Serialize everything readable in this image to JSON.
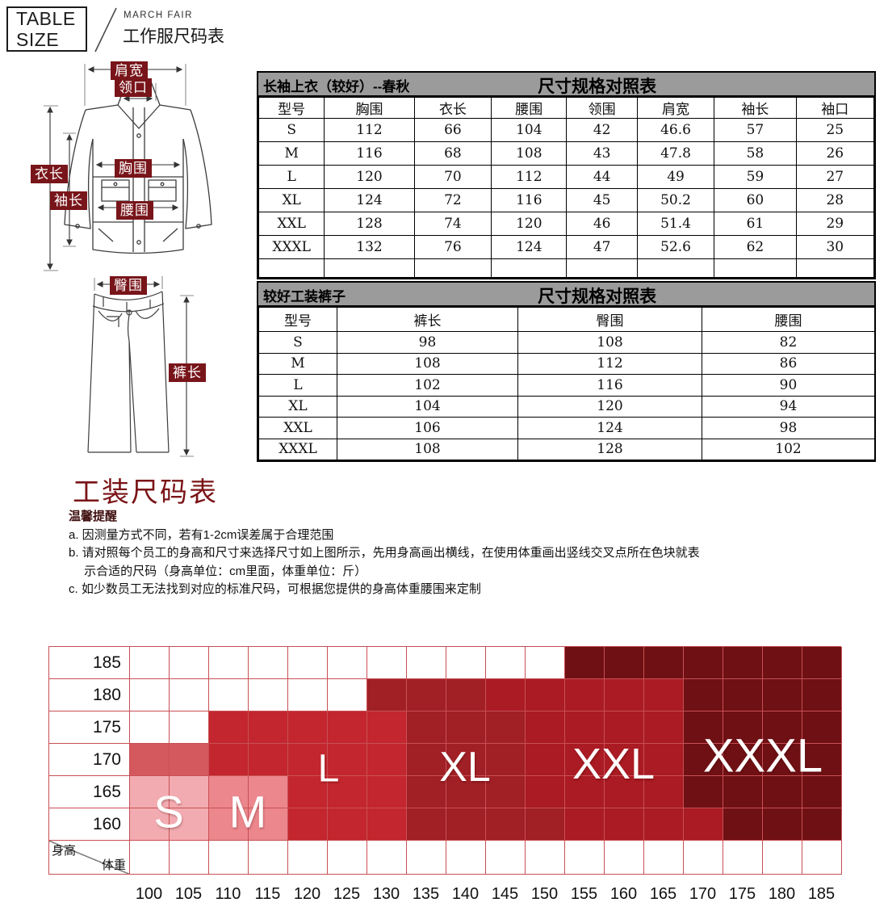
{
  "header": {
    "logo_line1": "TABLE",
    "logo_line2": "SIZE",
    "brand": "MARCH FAIR",
    "subtitle": "工作服尺码表"
  },
  "diagram": {
    "jacket": {
      "shoulder": "肩宽",
      "collar": "领口",
      "length": "衣长",
      "sleeve": "袖长",
      "chest": "胸围",
      "waist": "腰围"
    },
    "pants": {
      "hip": "臀围",
      "pant_length": "裤长"
    },
    "chip_color": "#78151A"
  },
  "tables": [
    {
      "title": "长袖上衣（较好）--春秋",
      "header_title": "尺寸规格对照表",
      "columns": [
        "型号",
        "胸围",
        "衣长",
        "腰围",
        "领围",
        "肩宽",
        "袖长",
        "袖口"
      ],
      "rows": [
        [
          "S",
          "112",
          "66",
          "104",
          "42",
          "46.6",
          "57",
          "25"
        ],
        [
          "M",
          "116",
          "68",
          "108",
          "43",
          "47.8",
          "58",
          "26"
        ],
        [
          "L",
          "120",
          "70",
          "112",
          "44",
          "49",
          "59",
          "27"
        ],
        [
          "XL",
          "124",
          "72",
          "116",
          "45",
          "50.2",
          "60",
          "28"
        ],
        [
          "XXL",
          "128",
          "74",
          "120",
          "46",
          "51.4",
          "61",
          "29"
        ],
        [
          "XXXL",
          "132",
          "76",
          "124",
          "47",
          "52.6",
          "62",
          "30"
        ],
        [
          "",
          "",
          "",
          "",
          "",
          "",
          "",
          ""
        ]
      ]
    },
    {
      "title": "较好工装裤子",
      "header_title": "尺寸规格对照表",
      "columns": [
        "型号",
        "裤长",
        "臀围",
        "腰围"
      ],
      "rows": [
        [
          "S",
          "98",
          "108",
          "82"
        ],
        [
          "M",
          "108",
          "112",
          "86"
        ],
        [
          "L",
          "102",
          "116",
          "90"
        ],
        [
          "XL",
          "104",
          "120",
          "94"
        ],
        [
          "XXL",
          "106",
          "124",
          "98"
        ],
        [
          "XXXL",
          "108",
          "128",
          "102"
        ]
      ]
    }
  ],
  "section_title": "工装尺码表",
  "notes": {
    "heading": "温馨提醒",
    "lines": [
      "a. 因测量方式不同，若有1-2cm误差属于合理范围",
      "b. 请对照每个员工的身高和尺寸来选择尺寸如上图所示，先用身高画出横线，在使用体重画出竖线交叉点所在色块就表",
      "　 示合适的尺码（身高单位：cm里面，体重单位：斤）",
      "c. 如少数员工无法找到对应的标准尺码，可根据您提供的身高体重腰围来定制"
    ]
  },
  "chart_data": {
    "type": "heatmap",
    "y_axis_label": "身高",
    "x_axis_label": "体重",
    "y_ticks": [
      "185",
      "180",
      "175",
      "170",
      "165",
      "160"
    ],
    "x_ticks": [
      "100",
      "105",
      "110",
      "115",
      "120",
      "125",
      "130",
      "135",
      "140",
      "145",
      "150",
      "155",
      "160",
      "165",
      "170",
      "175",
      "180",
      "185"
    ],
    "sizes": [
      "S",
      "M",
      "L",
      "XL",
      "XXL",
      "XXXL"
    ],
    "size_ranges": [
      {
        "size": "S",
        "weight": "100-105",
        "height": "160-165"
      },
      {
        "size": "M",
        "weight": "110-115",
        "height": "160-170"
      },
      {
        "size": "L",
        "weight": "110-130",
        "height": "160-175"
      },
      {
        "size": "XL",
        "weight": "135-150",
        "height": "160-180"
      },
      {
        "size": "XXL",
        "weight": "150-170",
        "height": "160-180"
      },
      {
        "size": "XXXL",
        "weight": "155-185",
        "height": "160-185"
      }
    ],
    "palette": {
      "-": "#FFFFFF",
      "s": "#F2ACB1",
      "m": "#EB878D",
      "n": "#D4595F",
      "l": "#C3262E",
      "xl": "#A02026",
      "xxl": "#AA1B23",
      "xxxl": "#6E1014"
    },
    "grid": [
      [
        "-",
        "-",
        "-",
        "-",
        "-",
        "-",
        "-",
        "-",
        "-",
        "-",
        "-",
        "xxxl",
        "xxxl",
        "xxxl",
        "xxxl",
        "xxxl",
        "xxxl",
        "xxxl"
      ],
      [
        "-",
        "-",
        "-",
        "-",
        "-",
        "-",
        "xl",
        "xl",
        "xl",
        "xxl",
        "xxl",
        "xxl",
        "xxl",
        "xxl",
        "xxxl",
        "xxxl",
        "xxxl",
        "xxxl"
      ],
      [
        "-",
        "-",
        "l",
        "l",
        "l",
        "l",
        "l",
        "xl",
        "xl",
        "xl",
        "xxl",
        "xxl",
        "xxl",
        "xxl",
        "xxxl",
        "xxxl",
        "xxxl",
        "xxxl"
      ],
      [
        "n",
        "n",
        "l",
        "l",
        "l",
        "l",
        "l",
        "xl",
        "xl",
        "xl",
        "xxl",
        "xxl",
        "xxl",
        "xxl",
        "xxxl",
        "xxxl",
        "xxxl",
        "xxxl"
      ],
      [
        "s",
        "s",
        "m",
        "m",
        "l",
        "l",
        "l",
        "xl",
        "xl",
        "xl",
        "xxl",
        "xxl",
        "xxl",
        "xxl",
        "xxxl",
        "xxxl",
        "xxxl",
        "xxxl"
      ],
      [
        "s",
        "s",
        "m",
        "m",
        "l",
        "l",
        "l",
        "xl",
        "xl",
        "xl",
        "xl",
        "xxl",
        "xxl",
        "xxl",
        "xxl",
        "xxxl",
        "xxxl",
        "xxxl"
      ]
    ],
    "grid_line_color": "#C85055"
  }
}
